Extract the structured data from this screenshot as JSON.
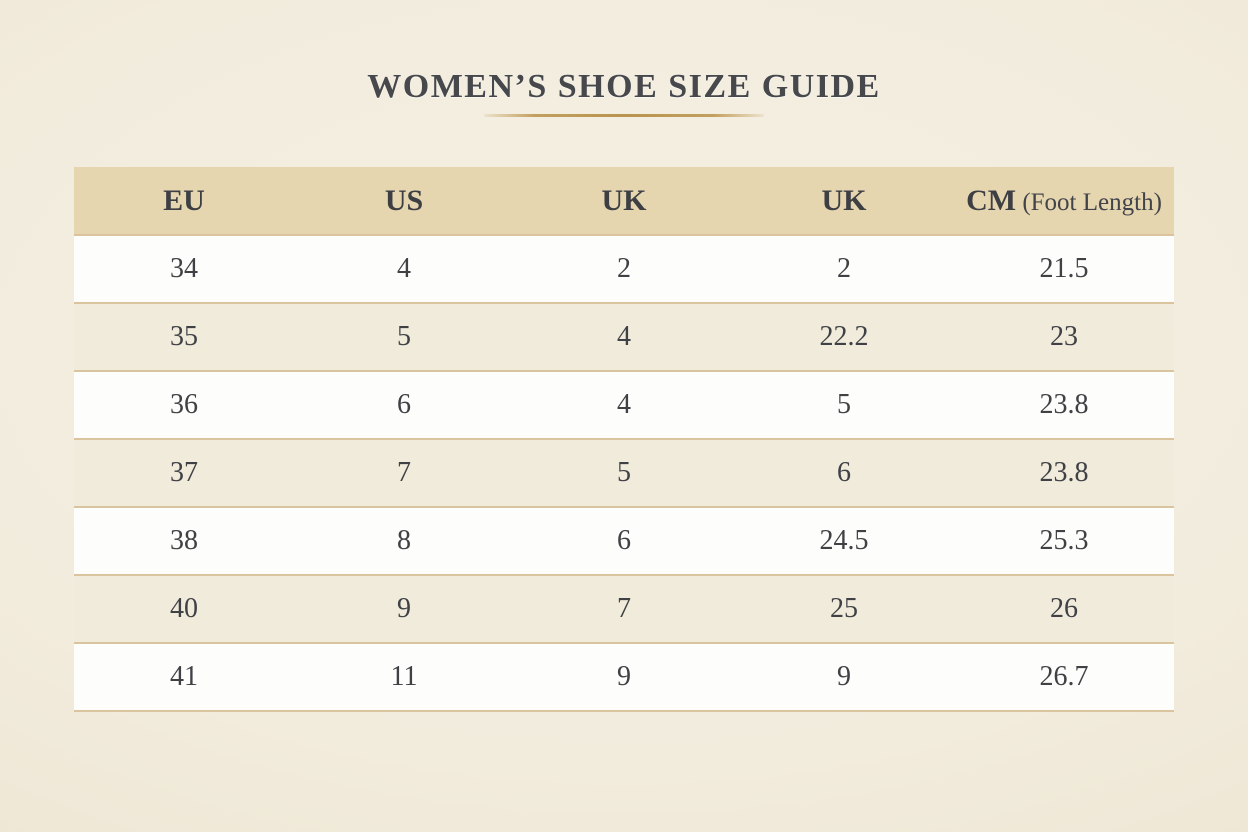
{
  "title": "WOMEN’S SHOE SIZE GUIDE",
  "colors": {
    "page_background_center": "#f5f0e4",
    "page_background_edge": "#e5dbc3",
    "title_text": "#46484c",
    "accent_gold": "#b9934f",
    "header_background": "#e6d6b0",
    "row_white": "#fdfdfb",
    "row_cream": "#f1ebdc",
    "row_divider": "#d9c49d",
    "cell_text": "#3f4145"
  },
  "chart_data": {
    "type": "table",
    "title": "WOMEN’S SHOE SIZE GUIDE",
    "columns": [
      {
        "id": "eu",
        "label": "EU",
        "note": ""
      },
      {
        "id": "us",
        "label": "US",
        "note": ""
      },
      {
        "id": "uk-1",
        "label": "UK",
        "note": ""
      },
      {
        "id": "uk-2",
        "label": "UK",
        "note": ""
      },
      {
        "id": "cm",
        "label": "CM",
        "note": "(Foot Length)"
      }
    ],
    "rows": [
      [
        "34",
        "4",
        "2",
        "2",
        "21.5"
      ],
      [
        "35",
        "5",
        "4",
        "22.2",
        "23"
      ],
      [
        "36",
        "6",
        "4",
        "5",
        "23.8"
      ],
      [
        "37",
        "7",
        "5",
        "6",
        "23.8"
      ],
      [
        "38",
        "8",
        "6",
        "24.5",
        "25.3"
      ],
      [
        "40",
        "9",
        "7",
        "25",
        "26"
      ],
      [
        "41",
        "11",
        "9",
        "9",
        "26.7"
      ]
    ]
  }
}
